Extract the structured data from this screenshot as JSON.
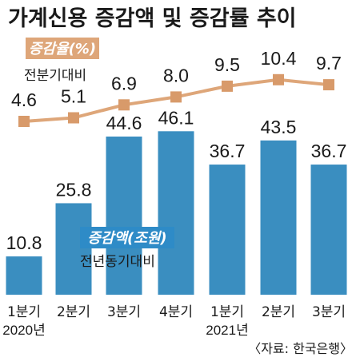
{
  "title": "가계신용 증감액 및 증감률 추이",
  "source": "〈자료: 한국은행〉",
  "colors": {
    "bar": "#3a8ec0",
    "line": "#dea679",
    "marker": "#d89a6a",
    "rate_badge": "#dea679",
    "amount_badge": "#2e8bc7"
  },
  "chart_data": {
    "type": "bar+line",
    "categories": [
      "1분기",
      "2분기",
      "3분기",
      "4분기",
      "1분기",
      "2분기",
      "3분기"
    ],
    "year_labels": [
      {
        "index": 0,
        "label": "2020년"
      },
      {
        "index": 4,
        "label": "2021년"
      }
    ],
    "series": [
      {
        "type": "bar",
        "name": "증감액(조원)",
        "note": "전년동기대비",
        "values": [
          10.8,
          25.8,
          44.6,
          46.1,
          36.7,
          43.5,
          36.7
        ],
        "value_labels": [
          "10.8",
          "25.8",
          "44.6",
          "46.1",
          "36.7",
          "43.5",
          "36.7"
        ]
      },
      {
        "type": "line",
        "name": "증감율(%)",
        "note": "전분기대비",
        "values": [
          4.6,
          5.1,
          6.9,
          8.0,
          9.5,
          10.4,
          9.7
        ],
        "value_labels": [
          "4.6",
          "5.1",
          "6.9",
          "8.0",
          "9.5",
          "10.4",
          "9.7"
        ]
      }
    ],
    "grid": false,
    "axes_visible": false
  }
}
